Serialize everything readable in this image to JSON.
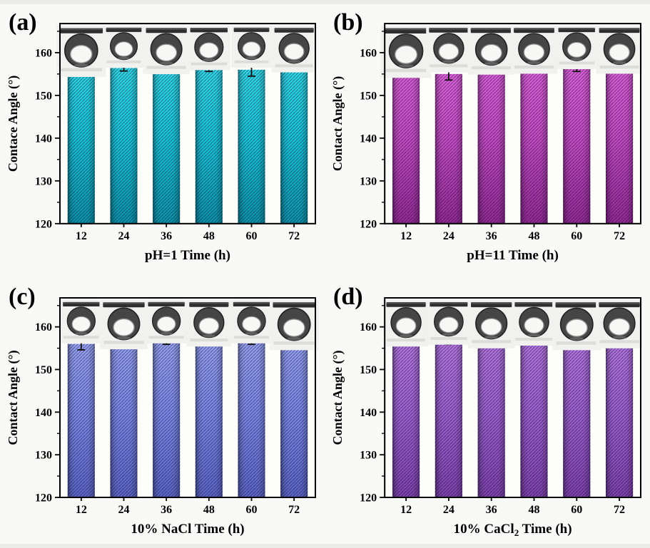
{
  "figure": {
    "background": "#f9f9f7",
    "plot_background": "#fdfdfc",
    "axis_color": "#000000",
    "error_bar_color": "#111111"
  },
  "chart_data": [
    {
      "type": "bar",
      "panel_label": "(a)",
      "ylabel": "Contace Angle (°)",
      "xlabel": {
        "pre": "pH=1 Time (h)",
        "sub": "",
        "post": ""
      },
      "categories": [
        "12",
        "24",
        "36",
        "48",
        "60",
        "72"
      ],
      "values": [
        158.3,
        156.4,
        156.9,
        156.4,
        156.0,
        156.9
      ],
      "errors": [
        0.7,
        0.7,
        1.4,
        0.8,
        1.5,
        1.3
      ],
      "ylim": [
        120,
        166.8
      ],
      "yticks": [
        120,
        130,
        140,
        150,
        160
      ],
      "yticks_minor": [
        125,
        135,
        145,
        155,
        165
      ],
      "legend": "none",
      "grid": "off",
      "bar_colors": {
        "top": "#35d8ea",
        "mid": "#1cc3da",
        "bottom": "#0d8fa9",
        "hatch": "#063a4a"
      },
      "droplet_sizes": [
        1.12,
        0.92,
        1.06,
        0.97,
        0.92,
        1.02
      ]
    },
    {
      "type": "bar",
      "panel_label": "(b)",
      "ylabel": "Contact Angle (°)",
      "xlabel": {
        "pre": "pH=11 Time (h)",
        "sub": "",
        "post": ""
      },
      "categories": [
        "12",
        "24",
        "36",
        "48",
        "60",
        "72"
      ],
      "values": [
        157.4,
        155.0,
        157.4,
        156.9,
        156.4,
        157.4
      ],
      "errors": [
        0.7,
        1.4,
        0.8,
        1.5,
        0.8,
        0.6
      ],
      "ylim": [
        120,
        166.8
      ],
      "yticks": [
        120,
        130,
        140,
        150,
        160
      ],
      "yticks_minor": [
        125,
        135,
        145,
        155,
        165
      ],
      "legend": "none",
      "grid": "off",
      "bar_colors": {
        "top": "#d863d8",
        "mid": "#c04ec2",
        "bottom": "#8d2a92",
        "hatch": "#4a0d52"
      },
      "droplet_sizes": [
        1.14,
        1.02,
        1.07,
        1.05,
        0.95,
        1.05
      ]
    },
    {
      "type": "bar",
      "panel_label": "(c)",
      "ylabel": "Contact Angle (°)",
      "xlabel": {
        "pre": "10% NaCl Time (h)",
        "sub": "",
        "post": ""
      },
      "categories": [
        "12",
        "24",
        "36",
        "48",
        "60",
        "72"
      ],
      "values": [
        156.0,
        157.4,
        156.5,
        157.4,
        156.5,
        157.4
      ],
      "errors": [
        1.4,
        0.7,
        0.6,
        0.7,
        0.6,
        0.5
      ],
      "ylim": [
        120,
        166.8
      ],
      "yticks": [
        120,
        130,
        140,
        150,
        160
      ],
      "yticks_minor": [
        125,
        135,
        145,
        155,
        165
      ],
      "legend": "none",
      "grid": "off",
      "bar_colors": {
        "top": "#98a2ee",
        "mid": "#7d89e4",
        "bottom": "#5a63c0",
        "hatch": "#1f2660"
      },
      "droplet_sizes": [
        0.95,
        1.08,
        0.95,
        1.02,
        0.95,
        1.1
      ]
    },
    {
      "type": "bar",
      "panel_label": "(d)",
      "ylabel": "Contact Angle (°)",
      "xlabel": {
        "pre": "10% CaCl",
        "sub": "2",
        "post": " Time (h)"
      },
      "categories": [
        "12",
        "24",
        "36",
        "48",
        "60",
        "72"
      ],
      "values": [
        156.5,
        156.5,
        157.4,
        157.4,
        157.4,
        157.4
      ],
      "errors": [
        0.5,
        0.6,
        0.7,
        0.6,
        0.6,
        0.7
      ],
      "ylim": [
        120,
        166.8
      ],
      "yticks": [
        120,
        130,
        140,
        150,
        160
      ],
      "yticks_minor": [
        125,
        135,
        145,
        155,
        165
      ],
      "legend": "none",
      "grid": "off",
      "bar_colors": {
        "top": "#b279de",
        "mid": "#9b63ce",
        "bottom": "#7a42a8",
        "hatch": "#371457"
      },
      "droplet_sizes": [
        1.02,
        0.98,
        1.06,
        1.0,
        1.1,
        1.06
      ]
    }
  ]
}
